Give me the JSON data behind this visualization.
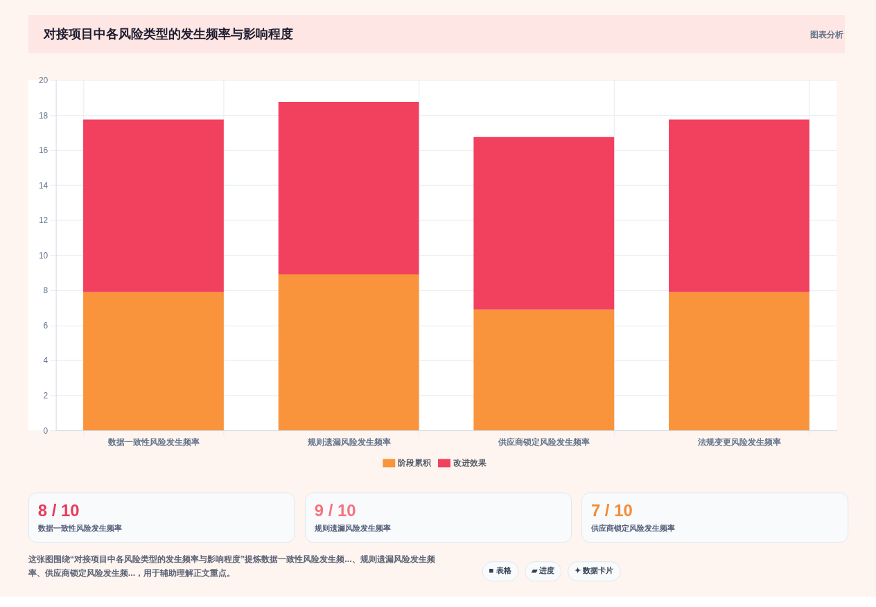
{
  "chart_data": [
    {
      "type": "bar",
      "title": "对接项目中各风险类型的发生频率与影响程度",
      "annotations": [
        "图表分析"
      ],
      "categories": [
        "数据一致性风险发生频率",
        "规则遗漏风险发生频率",
        "供应商锁定风险发生频率",
        "法规变更风险发生频率"
      ],
      "series": [
        {
          "name": "阶段累积",
          "color": "#f9943c",
          "values": [
            7.9,
            8.9,
            6.9,
            7.9
          ]
        },
        {
          "name": "改进效果",
          "color": "#f2405f",
          "values": [
            9.85,
            9.85,
            9.85,
            9.85
          ]
        }
      ],
      "stacked": true,
      "ylim": [
        0,
        20
      ],
      "yticks": [
        0,
        2,
        4,
        6,
        8,
        10,
        12,
        14,
        16,
        18,
        20
      ],
      "grid": true,
      "legend": "bottom"
    },
    {
      "type": "other",
      "annotations": [
        "8 / 10",
        "数据一致性风险发生频率",
        "9 / 10",
        "规则遗漏风险发生频率",
        "7 / 10",
        "供应商锁定风险发生频率",
        "这张图围绕“对接项目中各风险类型的发生频率与影响程度”提炼数据一致性风险发生频...、规则遗漏风险发生频率、供应商锁定风险发生频...，用于辅助理解正文重点。",
        "■ 表格",
        "▰ 进度",
        "✦ 数据卡片"
      ],
      "colors": [
        "#e63c5c",
        "#f5727f",
        "#f28c38"
      ]
    }
  ]
}
